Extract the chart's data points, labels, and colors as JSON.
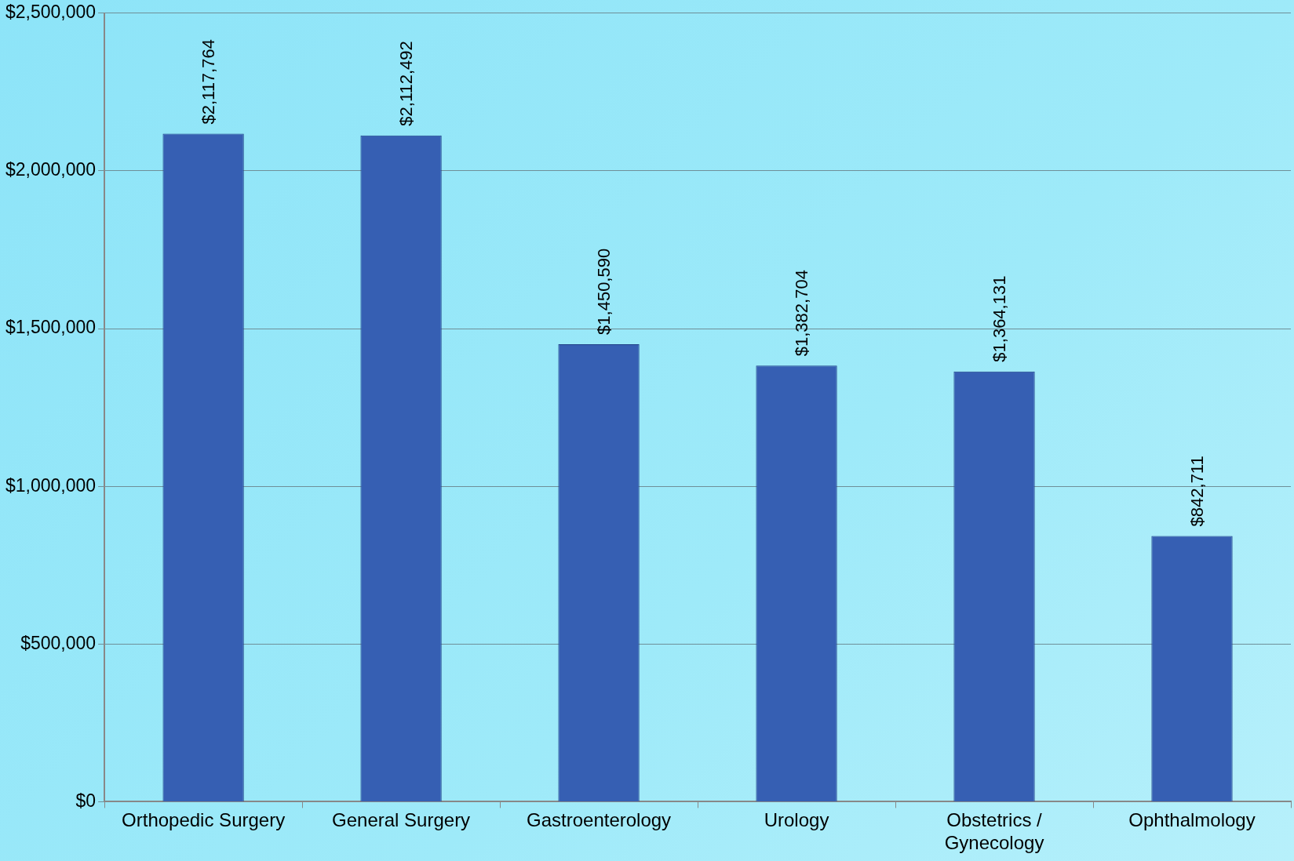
{
  "chart_data": {
    "type": "bar",
    "categories": [
      "Orthopedic Surgery",
      "General Surgery",
      "Gastroenterology",
      "Urology",
      "Obstetrics / Gynecology",
      "Ophthalmology"
    ],
    "values": [
      2117764,
      2112492,
      1450590,
      1382704,
      1364131,
      842711
    ],
    "value_labels": [
      "$2,117,764",
      "$2,112,492",
      "$1,450,590",
      "$1,382,704",
      "$1,364,131",
      "$842,711"
    ],
    "color": "#365fb3",
    "ylim": [
      0,
      2500000
    ],
    "yticks": [
      {
        "value": 0,
        "label": "$0"
      },
      {
        "value": 500000,
        "label": "$500,000"
      },
      {
        "value": 1000000,
        "label": "$1,000,000"
      },
      {
        "value": 1500000,
        "label": "$1,500,000"
      },
      {
        "value": 2000000,
        "label": "$2,000,000"
      },
      {
        "value": 2500000,
        "label": "$2,500,000"
      }
    ],
    "grid": "y",
    "legend": false
  }
}
